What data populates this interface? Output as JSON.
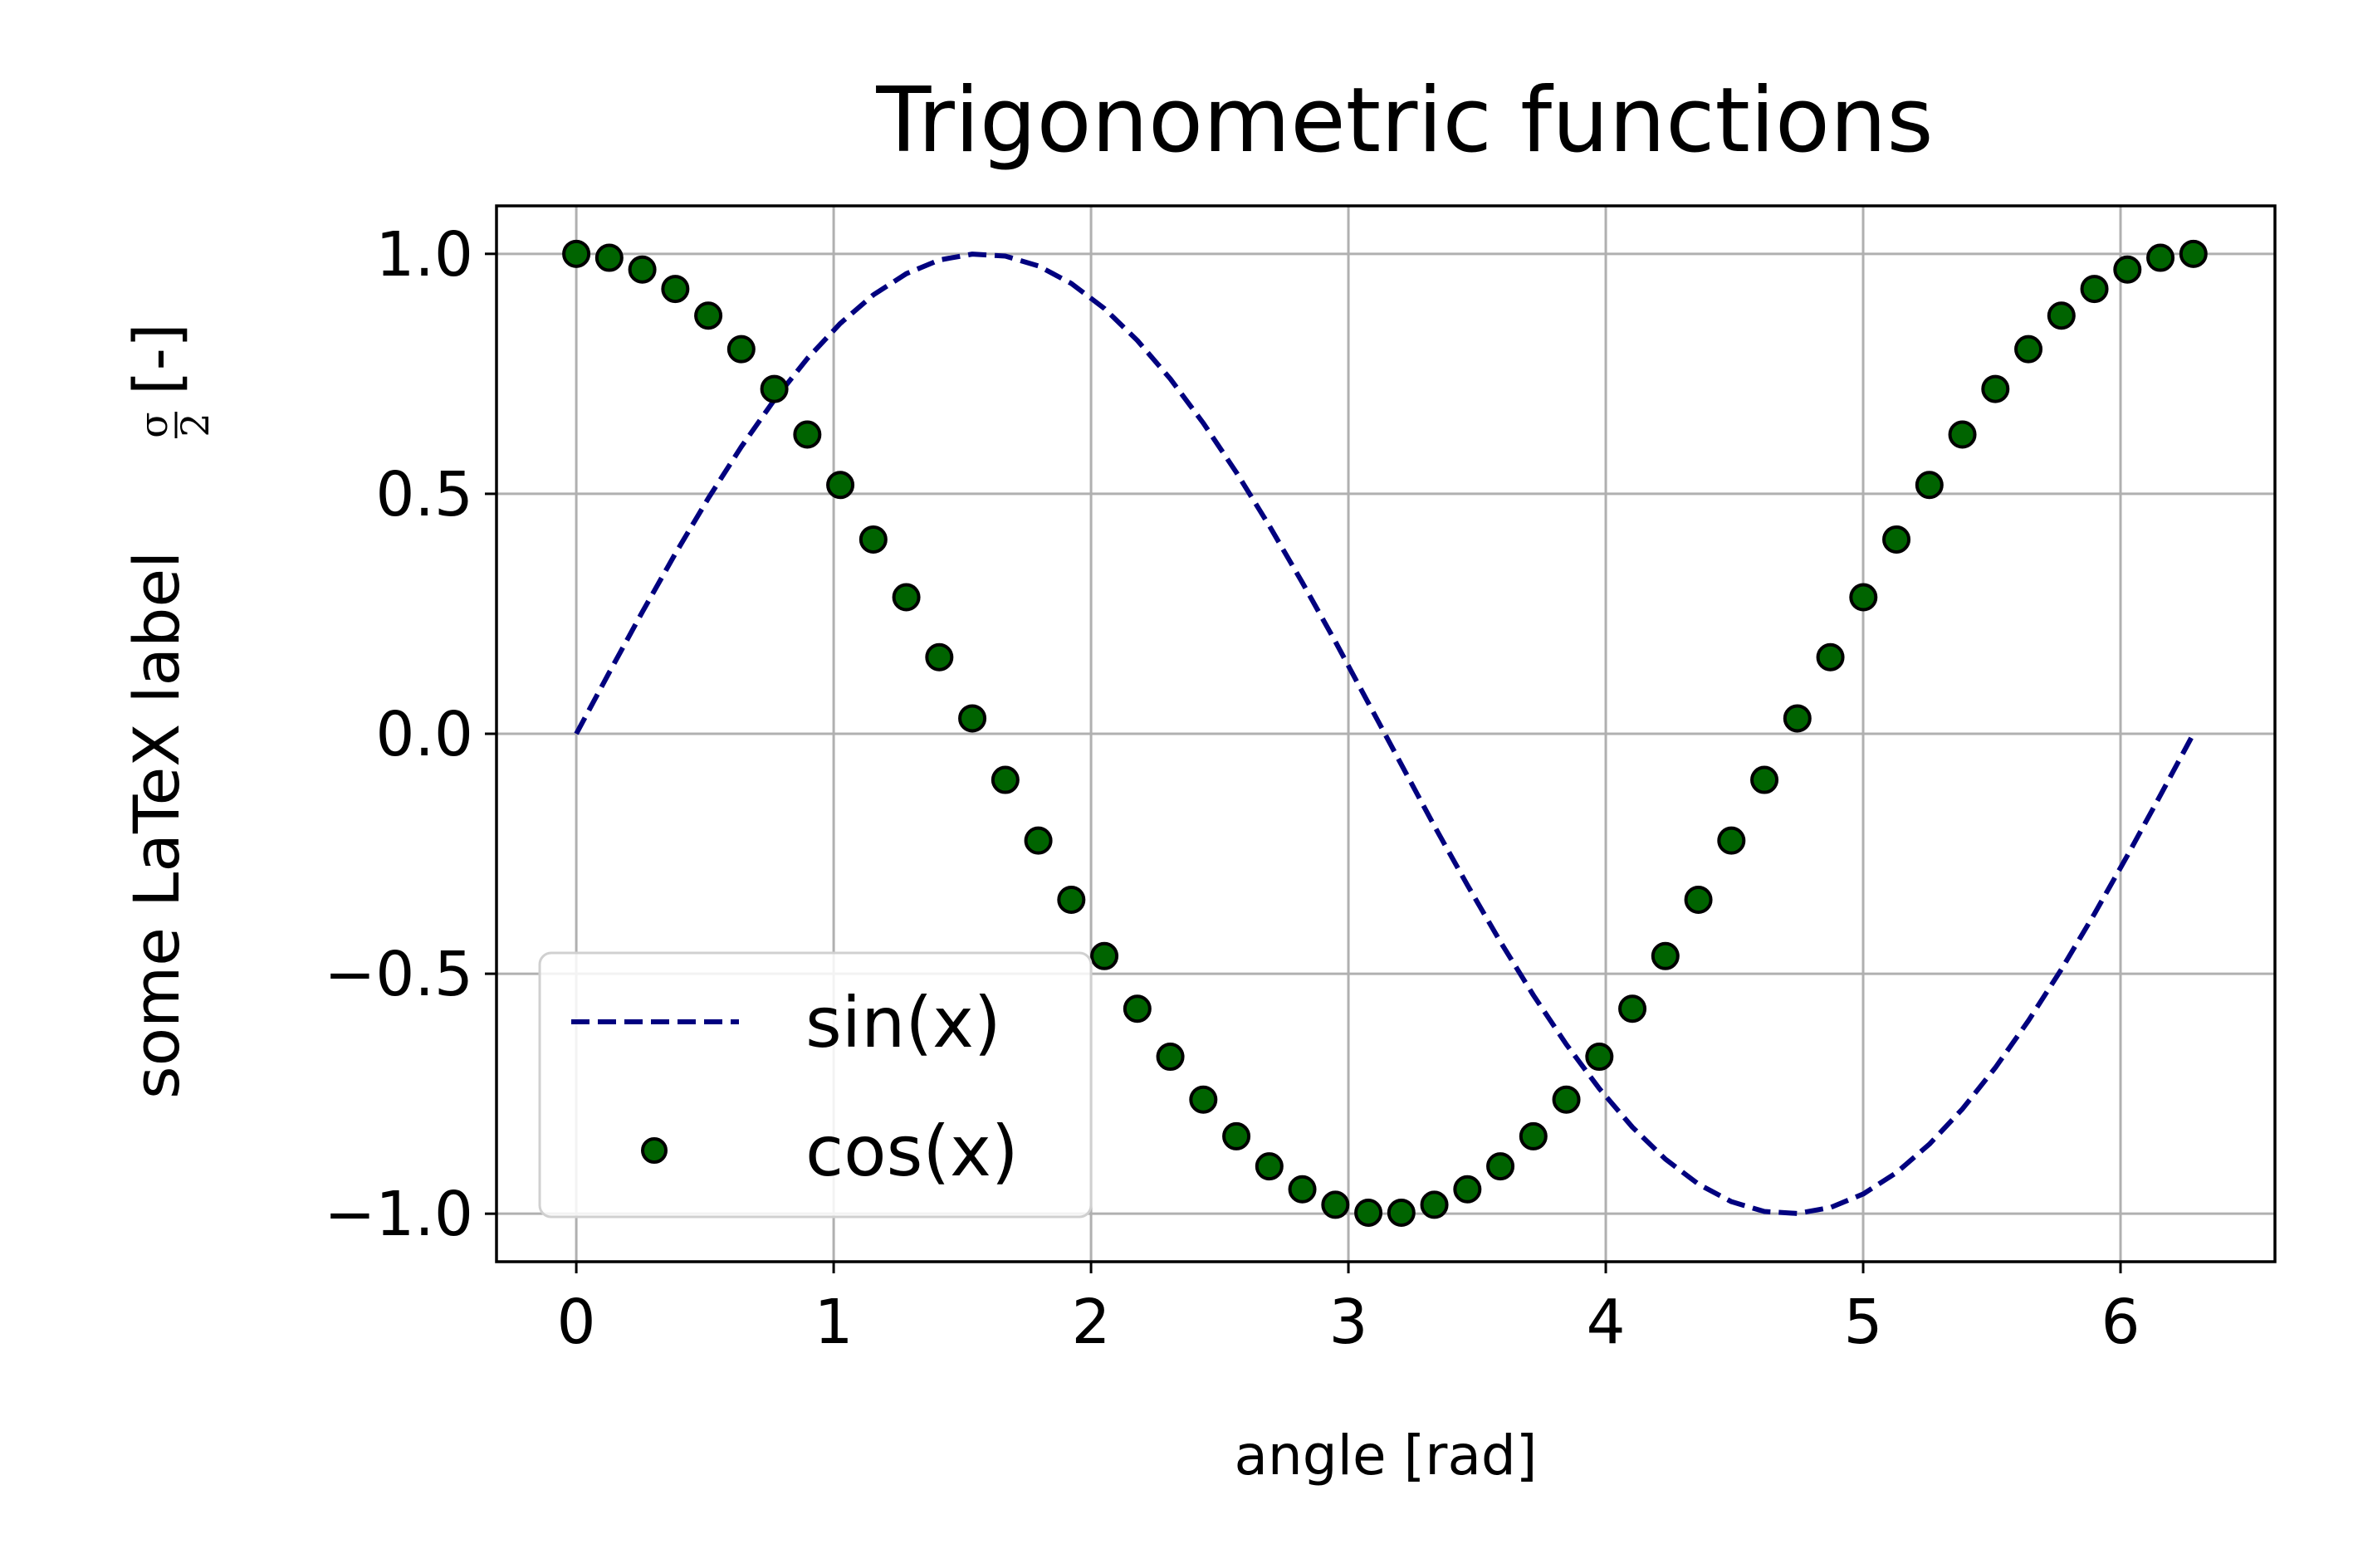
{
  "chart_data": {
    "type": "line",
    "title": "Trigonometric functions",
    "xlabel": "angle [rad]",
    "ylabel": {
      "text": "some LaTeX label",
      "frac_numerator": "σ",
      "frac_denominator": "2",
      "suffix": "[-]"
    },
    "xlim": [
      -0.31,
      6.6
    ],
    "ylim": [
      -1.1,
      1.1
    ],
    "x_ticks": [
      0,
      1,
      2,
      3,
      4,
      5,
      6
    ],
    "x_tick_labels": [
      "0",
      "1",
      "2",
      "3",
      "4",
      "5",
      "6"
    ],
    "y_ticks": [
      -1.0,
      -0.5,
      0.0,
      0.5,
      1.0
    ],
    "y_tick_labels": [
      "−1.0",
      "−0.5",
      "0.0",
      "0.5",
      "1.0"
    ],
    "grid": true,
    "legend_position": "lower-left",
    "series": [
      {
        "name": "sin(x)",
        "kind": "line",
        "style": "dashed",
        "color": "#00007f",
        "x": [
          0.0,
          0.1282,
          0.2565,
          0.3847,
          0.5129,
          0.6411,
          0.7694,
          0.8976,
          1.0258,
          1.1541,
          1.2823,
          1.4105,
          1.5387,
          1.667,
          1.7952,
          1.9234,
          2.0517,
          2.1799,
          2.3081,
          2.4363,
          2.5646,
          2.6928,
          2.821,
          2.9493,
          3.0775,
          3.2057,
          3.3339,
          3.4622,
          3.5904,
          3.7186,
          3.8468,
          3.9751,
          4.1033,
          4.2315,
          4.3598,
          4.488,
          4.6162,
          4.7444,
          4.8727,
          5.0009,
          5.1291,
          5.2574,
          5.3856,
          5.5138,
          5.642,
          5.7703,
          5.8985,
          6.0267,
          6.155,
          6.2832
        ],
        "y": [
          0.0,
          0.1279,
          0.2537,
          0.3753,
          0.4907,
          0.598,
          0.6956,
          0.7818,
          0.8551,
          0.9145,
          0.9587,
          0.9872,
          0.9995,
          0.9954,
          0.9749,
          0.9383,
          0.8862,
          0.8196,
          0.7395,
          0.6473,
          0.5446,
          0.4333,
          0.3151,
          0.1921,
          0.0641,
          -0.0641,
          -0.1921,
          -0.3151,
          -0.4333,
          -0.5446,
          -0.6473,
          -0.7395,
          -0.8196,
          -0.8862,
          -0.9383,
          -0.9749,
          -0.9954,
          -0.9995,
          -0.9872,
          -0.9587,
          -0.9145,
          -0.8551,
          -0.7818,
          -0.6956,
          -0.598,
          -0.4907,
          -0.3753,
          -0.2537,
          -0.1279,
          0.0
        ]
      },
      {
        "name": "cos(x)",
        "kind": "scatter",
        "color": "#006400",
        "edge_color": "#000000",
        "x": [
          0.0,
          0.1282,
          0.2565,
          0.3847,
          0.5129,
          0.6411,
          0.7694,
          0.8976,
          1.0258,
          1.1541,
          1.2823,
          1.4105,
          1.5387,
          1.667,
          1.7952,
          1.9234,
          2.0517,
          2.1799,
          2.3081,
          2.4363,
          2.5646,
          2.6928,
          2.821,
          2.9493,
          3.0775,
          3.2057,
          3.3339,
          3.4622,
          3.5904,
          3.7186,
          3.8468,
          3.9751,
          4.1033,
          4.2315,
          4.3598,
          4.488,
          4.6162,
          4.7444,
          4.8727,
          5.0009,
          5.1291,
          5.2574,
          5.3856,
          5.5138,
          5.642,
          5.7703,
          5.8985,
          6.0267,
          6.155,
          6.2832
        ],
        "y": [
          1.0,
          0.9918,
          0.9673,
          0.9269,
          0.8713,
          0.8014,
          0.7185,
          0.6235,
          0.5184,
          0.4048,
          0.2845,
          0.1596,
          0.0321,
          -0.0961,
          -0.2225,
          -0.3459,
          -0.4632,
          -0.5729,
          -0.6729,
          -0.7622,
          -0.8387,
          -0.9013,
          -0.9491,
          -0.9814,
          -0.9979,
          -0.9979,
          -0.9814,
          -0.9491,
          -0.9013,
          -0.8387,
          -0.7622,
          -0.6729,
          -0.5729,
          -0.4632,
          -0.3459,
          -0.2225,
          -0.0961,
          0.0321,
          0.1596,
          0.2845,
          0.4048,
          0.5184,
          0.6235,
          0.7185,
          0.8014,
          0.8713,
          0.9269,
          0.9673,
          0.9918,
          1.0
        ]
      }
    ]
  }
}
